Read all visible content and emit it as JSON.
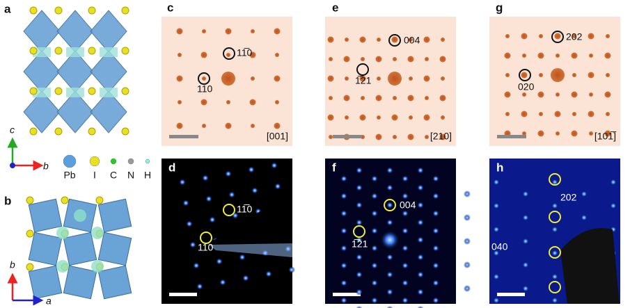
{
  "panel_a": {
    "letter": "a",
    "axis_labels": [
      "c",
      "b"
    ],
    "legend": [
      "Pb",
      "I",
      "C",
      "N",
      "H"
    ]
  },
  "panel_b": {
    "letter": "b",
    "axis_labels": [
      "b",
      "a"
    ]
  },
  "panel_c": {
    "letter": "c",
    "zone": "[001]",
    "labels": [
      "11̅0",
      "110"
    ]
  },
  "panel_d": {
    "letter": "d",
    "labels": [
      "11̅0",
      "110"
    ]
  },
  "panel_e": {
    "letter": "e",
    "zone": "[210]",
    "labels": [
      "004",
      "1̅21"
    ]
  },
  "panel_f": {
    "letter": "f",
    "labels": [
      "004",
      "1̅21"
    ]
  },
  "panel_g": {
    "letter": "g",
    "zone": "[101̅]",
    "labels": [
      "202",
      "020"
    ]
  },
  "panel_h": {
    "letter": "h",
    "labels": [
      "202",
      "040"
    ]
  }
}
